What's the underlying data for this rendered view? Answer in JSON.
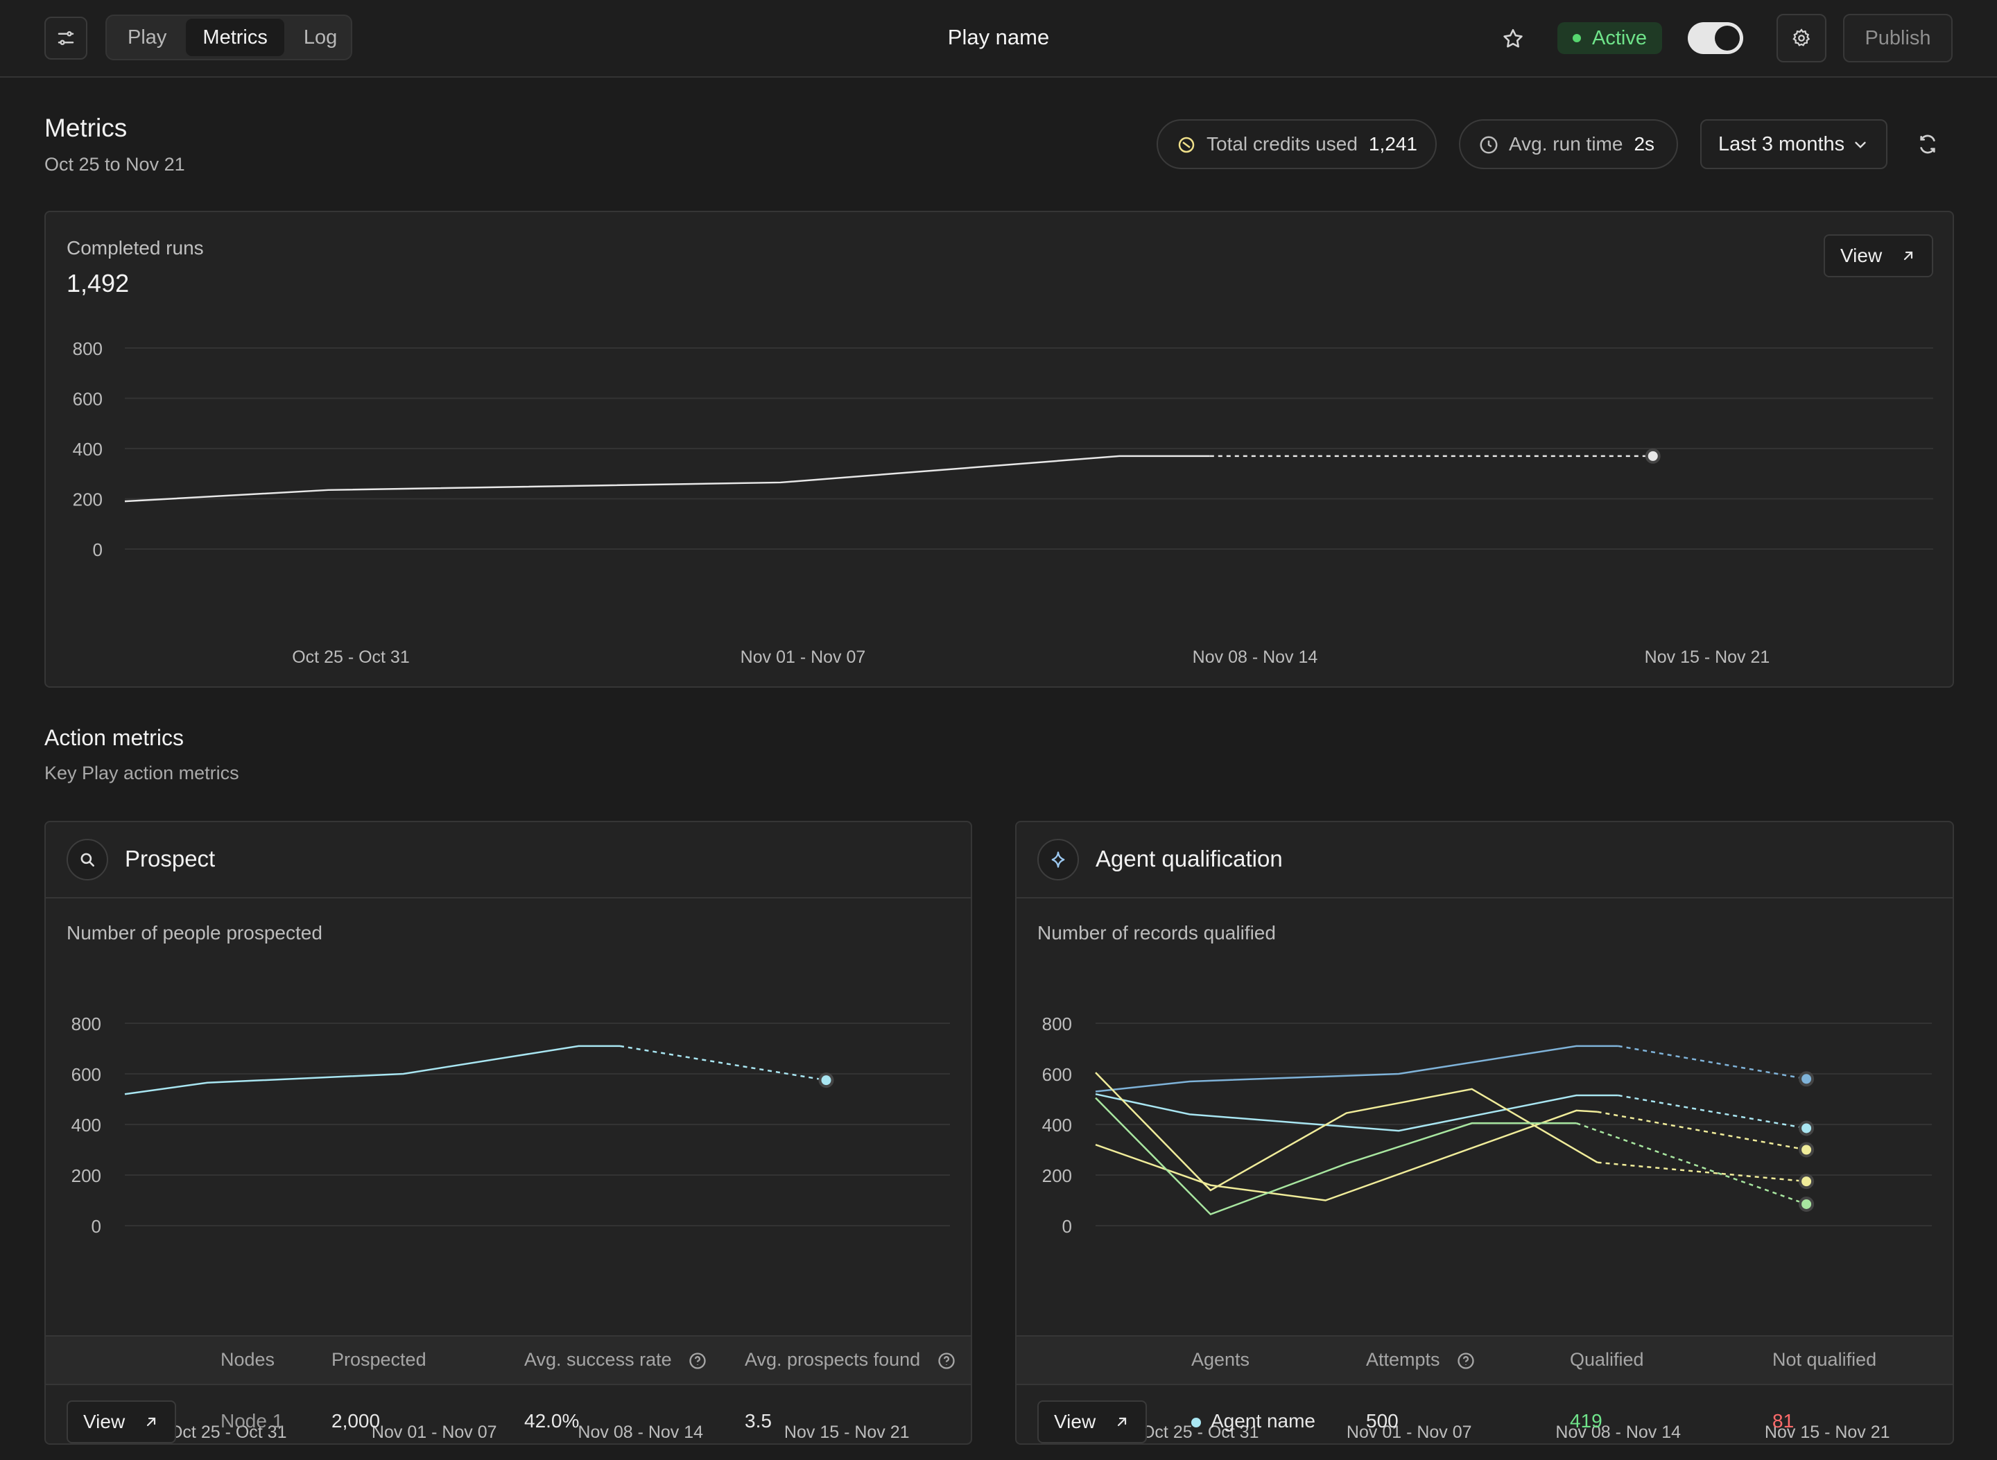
{
  "header": {
    "tabs": [
      "Play",
      "Metrics",
      "Log"
    ],
    "active_tab": "Metrics",
    "play_name": "Play name",
    "status": "Active",
    "publish_label": "Publish"
  },
  "metrics": {
    "title": "Metrics",
    "date_range": "Oct 25 to Nov 21",
    "credits_label": "Total credits used",
    "credits_value": "1,241",
    "runtime_label": "Avg. run time",
    "runtime_value": "2s",
    "period_select": "Last 3 months"
  },
  "completed_runs": {
    "label": "Completed runs",
    "value": "1,492",
    "view_label": "View"
  },
  "action_metrics": {
    "title": "Action metrics",
    "subtitle": "Key Play action metrics"
  },
  "prospect": {
    "title": "Prospect",
    "chart_label": "Number of people prospected",
    "table_headers": [
      "Nodes",
      "Prospected",
      "Avg. success rate",
      "Avg. prospects found"
    ],
    "row": {
      "view": "View",
      "node": "Node 1",
      "prospected": "2,000",
      "rate": "42.0%",
      "found": "3.5"
    }
  },
  "agent": {
    "title": "Agent qualification",
    "chart_label": "Number of records qualified",
    "table_headers": [
      "Agents",
      "Attempts",
      "Qualified",
      "Not qualified"
    ],
    "row": {
      "view": "View",
      "agent": "Agent name",
      "attempts": "500",
      "qualified": "419",
      "not_qualified": "81"
    }
  },
  "colors": {
    "active_green": "#56d66f",
    "cyan": "#a9e6f2",
    "blue": "#7fb3d9",
    "yellow": "#f0ec9a",
    "green": "#a8e6a0",
    "white": "#e8e8e8"
  },
  "chart_data": [
    {
      "type": "line",
      "title": "Completed runs",
      "categories": [
        "Oct 25 - Oct 31",
        "Nov 01 - Nov 07",
        "Nov 08 - Nov 14",
        "Nov 15 - Nov 21"
      ],
      "y_ticks": [
        0,
        200,
        400,
        600,
        800
      ],
      "ylim": [
        0,
        800
      ],
      "series": [
        {
          "color": "#e8e8e8",
          "x": [
            0,
            0.45,
            1.45,
            2.2,
            2.4,
            3.38
          ],
          "values": [
            190,
            235,
            265,
            370,
            370,
            370
          ],
          "projected_from_index": 4
        }
      ]
    },
    {
      "type": "line",
      "title": "Number of people prospected",
      "categories": [
        "Oct 25 - Oct 31",
        "Nov 01 - Nov 07",
        "Nov 08 - Nov 14",
        "Nov 15 - Nov 21"
      ],
      "y_ticks": [
        0,
        200,
        400,
        600,
        800
      ],
      "ylim": [
        0,
        800
      ],
      "series": [
        {
          "color": "#a9e6f2",
          "x": [
            0,
            0.4,
            1.35,
            2.2,
            2.4,
            3.4
          ],
          "values": [
            520,
            565,
            600,
            710,
            710,
            575
          ],
          "projected_from_index": 4
        }
      ]
    },
    {
      "type": "line",
      "title": "Number of records qualified",
      "categories": [
        "Oct 25 - Oct 31",
        "Nov 01 - Nov 07",
        "Nov 08 - Nov 14",
        "Nov 15 - Nov 21"
      ],
      "y_ticks": [
        0,
        200,
        400,
        600,
        800
      ],
      "ylim": [
        0,
        800
      ],
      "series": [
        {
          "color": "#7fb3d9",
          "x": [
            0,
            0.45,
            1.45,
            2.3,
            2.5,
            3.4
          ],
          "values": [
            530,
            570,
            600,
            710,
            710,
            580
          ],
          "projected_from_index": 4
        },
        {
          "color": "#a9e6f2",
          "x": [
            0,
            0.45,
            1.45,
            2.3,
            2.5,
            3.4
          ],
          "values": [
            520,
            440,
            375,
            515,
            515,
            385
          ],
          "projected_from_index": 4
        },
        {
          "color": "#f0ec9a",
          "x": [
            0,
            0.55,
            1.2,
            1.8,
            2.4,
            3.4
          ],
          "values": [
            605,
            140,
            445,
            540,
            250,
            175
          ],
          "projected_from_index": 4
        },
        {
          "color": "#f0ec9a",
          "x": [
            0,
            0.55,
            1.1,
            2.3,
            2.4,
            3.4
          ],
          "values": [
            320,
            160,
            100,
            455,
            450,
            300
          ],
          "projected_from_index": 4
        },
        {
          "color": "#a8e6a0",
          "x": [
            0,
            0.55,
            1.2,
            1.8,
            2.3,
            3.4
          ],
          "values": [
            505,
            45,
            245,
            405,
            405,
            85
          ],
          "projected_from_index": 4
        }
      ]
    }
  ]
}
